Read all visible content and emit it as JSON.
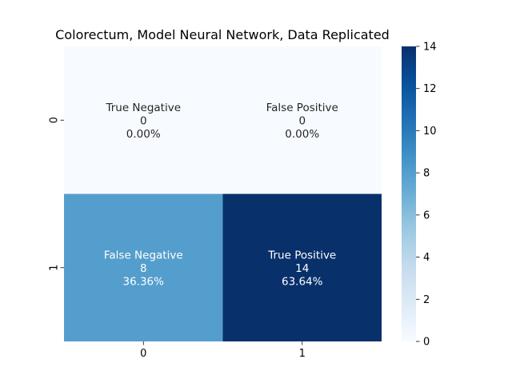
{
  "chart_data": {
    "type": "heatmap",
    "title": "Colorectum, Model Neural Network, Data Replicated",
    "x_categories": [
      "0",
      "1"
    ],
    "y_categories": [
      "0",
      "1"
    ],
    "values": [
      [
        0,
        0
      ],
      [
        8,
        14
      ]
    ],
    "cell_labels": [
      [
        [
          "True Negative",
          "0",
          "0.00%"
        ],
        [
          "False Positive",
          "0",
          "0.00%"
        ]
      ],
      [
        [
          "False Negative",
          "8",
          "36.36%"
        ],
        [
          "True Positive",
          "14",
          "63.64%"
        ]
      ]
    ],
    "colorbar": {
      "min": 0,
      "max": 14,
      "ticks": [
        "0",
        "2",
        "4",
        "6",
        "8",
        "10",
        "12",
        "14"
      ]
    },
    "colormap": "Blues",
    "colors": {
      "low": "#f7fbff",
      "high": "#08306b"
    }
  }
}
